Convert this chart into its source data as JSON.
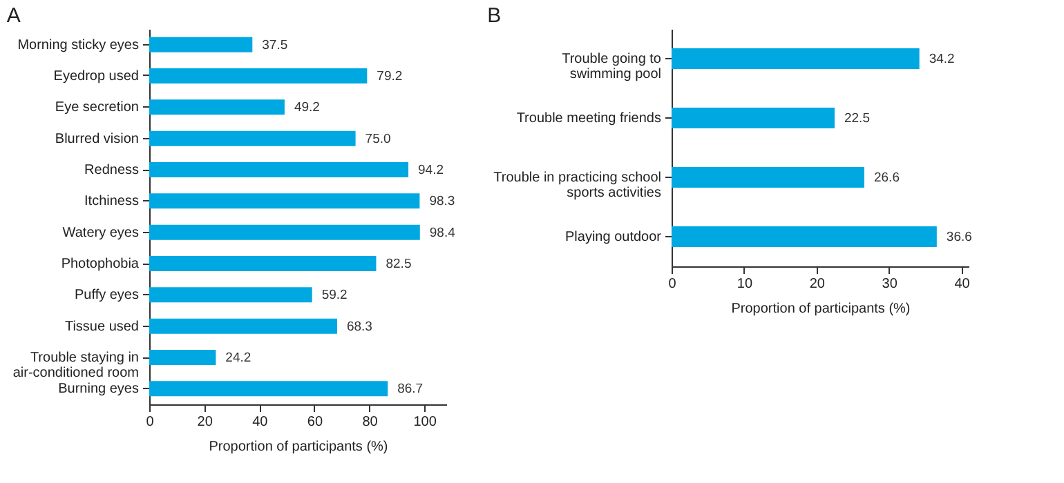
{
  "chart_data": [
    {
      "type": "bar",
      "title": "A",
      "orientation": "horizontal",
      "categories": [
        "Morning sticky eyes",
        "Eyedrop used",
        "Eye secretion",
        "Blurred vision",
        "Redness",
        "Itchiness",
        "Watery eyes",
        "Photophobia",
        "Puffy eyes",
        "Tissue used",
        "Trouble staying in\nair-conditioned room",
        "Burning eyes"
      ],
      "values": [
        37.5,
        79.2,
        49.2,
        75.0,
        94.2,
        98.3,
        98.4,
        82.5,
        59.2,
        68.3,
        24.2,
        86.7
      ],
      "value_labels": [
        "37.5",
        "79.2",
        "49.2",
        "75.0",
        "94.2",
        "98.3",
        "98.4",
        "82.5",
        "59.2",
        "68.3",
        "24.2",
        "86.7"
      ],
      "color": "#00a8e1",
      "xlabel": "Proportion of participants (%)",
      "xlim": [
        0,
        108
      ],
      "xticks": [
        0,
        20,
        40,
        60,
        80,
        100
      ]
    },
    {
      "type": "bar",
      "title": "B",
      "orientation": "horizontal",
      "categories": [
        "Trouble going to\nswimming pool",
        "Trouble meeting friends",
        "Trouble in practicing school\nsports activities",
        "Playing outdoor"
      ],
      "values": [
        34.2,
        22.5,
        26.6,
        36.6
      ],
      "value_labels": [
        "34.2",
        "22.5",
        "26.6",
        "36.6"
      ],
      "color": "#00a8e1",
      "xlabel": "Proportion of participants (%)",
      "xlim": [
        0,
        41
      ],
      "xticks": [
        0,
        10,
        20,
        30,
        40
      ]
    }
  ]
}
